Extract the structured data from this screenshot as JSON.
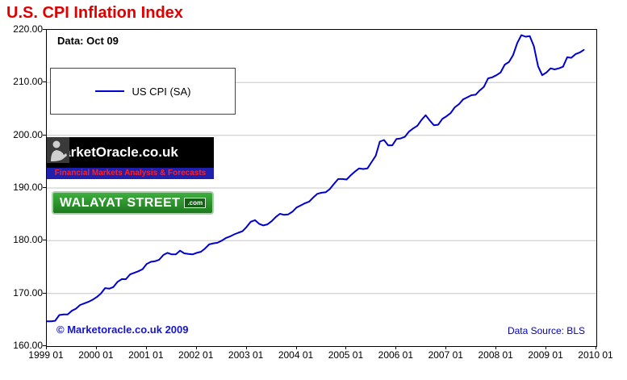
{
  "title": "U.S. CPI Inflation Index",
  "annotations": {
    "data_label": "Data: Oct 09",
    "copyright": "© Marketoracle.co.uk  2009",
    "data_source": "Data Source: BLS"
  },
  "legend": {
    "label": "US CPI (SA)"
  },
  "logos": {
    "marketoracle": {
      "title": "MarketOracle.co.uk",
      "subtitle": "Financial Markets Analysis & Forecasts",
      "icon": "oracle-figure-icon"
    },
    "walayat": {
      "title": "WALAYAT STREET",
      "suffix": ".com"
    }
  },
  "colors": {
    "title_red": "#e00000",
    "line_blue": "#0000d0",
    "gridline": "#c6c6c6",
    "copyright_blue": "#1515cc",
    "source_blue": "#0000bb",
    "walayat_green": "#2e9b2e",
    "strip_blue": "#2020b0",
    "strip_red": "#ff2020"
  },
  "chart_data": {
    "type": "line",
    "title": "U.S. CPI Inflation Index",
    "xlabel": "",
    "ylabel": "",
    "grid": true,
    "legend_position": "top-left-box",
    "ylim": [
      160,
      220
    ],
    "y_ticks": [
      160,
      170,
      180,
      190,
      200,
      210,
      220
    ],
    "y_tick_labels": [
      "160.00",
      "170.00",
      "180.00",
      "190.00",
      "200.00",
      "210.00",
      "220.00"
    ],
    "x_tick_labels": [
      "1999 01",
      "2000 01",
      "2001 01",
      "2002 01",
      "2003 01",
      "2004 01",
      "2005 01",
      "2006 01",
      "2007 01",
      "2008 01",
      "2009 01",
      "2010 01"
    ],
    "x_tick_interval_months": 12,
    "x_total_months": 132,
    "x_start": "1999-01",
    "x_end": "2009-10",
    "series": [
      {
        "name": "US CPI (SA)",
        "color": "#0000d0",
        "values": [
          164.7,
          164.7,
          164.8,
          165.9,
          166.0,
          166.0,
          166.7,
          167.1,
          167.8,
          168.1,
          168.4,
          168.8,
          169.3,
          170.0,
          171.0,
          170.9,
          171.2,
          172.2,
          172.7,
          172.7,
          173.6,
          173.9,
          174.2,
          174.6,
          175.6,
          176.0,
          176.1,
          176.4,
          177.3,
          177.7,
          177.4,
          177.4,
          178.1,
          177.6,
          177.5,
          177.4,
          177.7,
          177.9,
          178.5,
          179.3,
          179.5,
          179.6,
          180.0,
          180.5,
          180.8,
          181.2,
          181.5,
          181.8,
          182.6,
          183.6,
          183.9,
          183.2,
          182.9,
          183.1,
          183.7,
          184.5,
          185.1,
          184.9,
          185.0,
          185.5,
          186.3,
          186.7,
          187.1,
          187.4,
          188.2,
          188.9,
          189.1,
          189.2,
          189.8,
          190.8,
          191.7,
          191.7,
          191.6,
          192.4,
          193.1,
          193.7,
          193.6,
          193.7,
          194.9,
          196.1,
          198.8,
          199.1,
          198.1,
          198.1,
          199.3,
          199.4,
          199.7,
          200.7,
          201.3,
          201.8,
          202.9,
          203.8,
          202.8,
          201.9,
          202.0,
          203.1,
          203.6,
          204.2,
          205.3,
          205.9,
          206.8,
          207.2,
          207.6,
          207.7,
          208.5,
          209.2,
          210.8,
          211.0,
          211.4,
          211.9,
          213.4,
          213.9,
          215.2,
          217.5,
          219.0,
          218.7,
          218.8,
          216.9,
          213.1,
          211.4,
          211.9,
          212.7,
          212.5,
          212.7,
          213.0,
          214.8,
          214.7,
          215.4,
          215.7,
          216.2
        ]
      }
    ]
  }
}
